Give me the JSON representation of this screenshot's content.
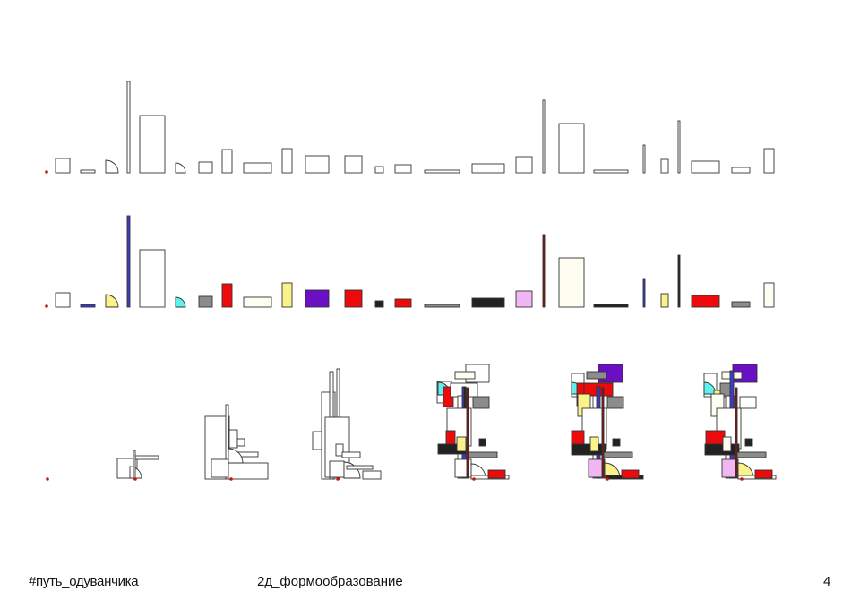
{
  "footer": {
    "hashtag": "#путь_одуванчика",
    "title": "2д_формообразование",
    "page_number": "4"
  },
  "palette": {
    "outline": "#333333",
    "empty_fill": "#ffffff",
    "cream": "#fdfdf1",
    "blue": "#3b3bc6",
    "yellow": "#fbf38a",
    "cyan": "#5ff3f0",
    "gray": "#8c8c8c",
    "red": "#ee0a0a",
    "purple": "#6a0fc4",
    "black": "#222222",
    "pink": "#f2b7f2",
    "darkred": "#8a1010",
    "origin_dot": "#c21818"
  },
  "rows": [
    {
      "name": "outline-elements-row",
      "content": "uncolored catalogue of form elements"
    },
    {
      "name": "colored-elements-row",
      "content": "colored catalogue of form elements"
    },
    {
      "name": "composition-steps-row",
      "content": "seven progressive composition stages"
    }
  ]
}
